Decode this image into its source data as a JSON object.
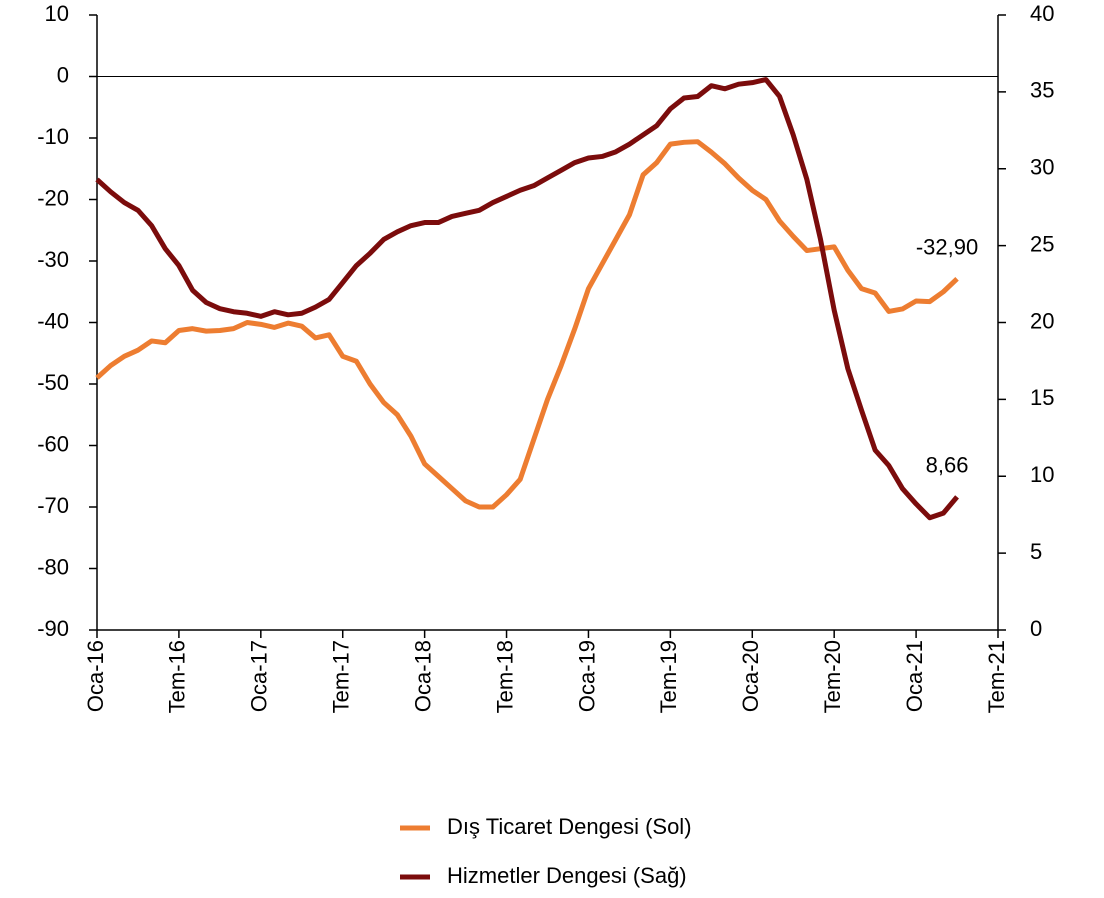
{
  "chart_data": {
    "type": "line",
    "categories": [
      "Oca-16",
      null,
      null,
      null,
      null,
      null,
      "Tem-16",
      null,
      null,
      null,
      null,
      null,
      "Oca-17",
      null,
      null,
      null,
      null,
      null,
      "Tem-17",
      null,
      null,
      null,
      null,
      null,
      "Oca-18",
      null,
      null,
      null,
      null,
      null,
      "Tem-18",
      null,
      null,
      null,
      null,
      null,
      "Oca-19",
      null,
      null,
      null,
      null,
      null,
      "Tem-19",
      null,
      null,
      null,
      null,
      null,
      "Oca-20",
      null,
      null,
      null,
      null,
      null,
      "Tem-20",
      null,
      null,
      null,
      null,
      null,
      "Oca-21",
      null,
      null,
      null,
      null,
      null,
      "Tem-21"
    ],
    "series": [
      {
        "name": "Dış Ticaret Dengesi (Sol)",
        "color": "#ed7d31",
        "axis": "y",
        "values": [
          -49,
          -47,
          -45.5,
          -44.5,
          -43,
          -43.3,
          -41.3,
          -41,
          -41.4,
          -41.3,
          -41,
          -40,
          -40.3,
          -40.8,
          -40.1,
          -40.6,
          -42.5,
          -42,
          -45.5,
          -46.3,
          -50,
          -53,
          -55,
          -58.5,
          -63,
          -65,
          -67,
          -69,
          -70,
          -70,
          -68,
          -65.5,
          -59,
          -52.5,
          -47,
          -41,
          -34.5,
          -30.5,
          -26.5,
          -22.5,
          -16,
          -14,
          -11,
          -10.7,
          -10.6,
          -12.3,
          -14.2,
          -16.5,
          -18.5,
          -20,
          -23.5,
          -26,
          -28.3,
          -28,
          -27.7,
          -31.5,
          -34.5,
          -35.2,
          -38.2,
          -37.8,
          -36.5,
          -36.6,
          -35,
          -32.9,
          null,
          null,
          null
        ],
        "value_labels": [
          null,
          null,
          null,
          null,
          null,
          null,
          null,
          null,
          null,
          null,
          null,
          null,
          null,
          null,
          null,
          null,
          null,
          null,
          null,
          null,
          null,
          null,
          null,
          null,
          null,
          null,
          null,
          null,
          null,
          null,
          null,
          null,
          null,
          null,
          null,
          null,
          null,
          null,
          null,
          null,
          null,
          null,
          null,
          null,
          null,
          null,
          null,
          null,
          null,
          null,
          null,
          null,
          null,
          null,
          null,
          null,
          null,
          null,
          null,
          null,
          null,
          null,
          null,
          "-32,90",
          null,
          null,
          null
        ]
      },
      {
        "name": "Hizmetler Dengesi (Sağ)",
        "color": "#7b0c0c",
        "axis": "y2",
        "values": [
          29.3,
          28.5,
          27.8,
          27.3,
          26.3,
          24.8,
          23.7,
          22.1,
          21.3,
          20.9,
          20.7,
          20.6,
          20.4,
          20.7,
          20.5,
          20.6,
          21,
          21.5,
          22.6,
          23.7,
          24.5,
          25.4,
          25.9,
          26.3,
          26.5,
          26.5,
          26.9,
          27.1,
          27.3,
          27.8,
          28.2,
          28.6,
          28.9,
          29.4,
          29.9,
          30.4,
          30.7,
          30.8,
          31.1,
          31.6,
          32.2,
          32.8,
          33.9,
          34.6,
          34.7,
          35.4,
          35.2,
          35.5,
          35.6,
          35.8,
          34.7,
          32.2,
          29.3,
          25.4,
          20.8,
          17,
          14.3,
          11.7,
          10.7,
          9.2,
          8.2,
          7.3,
          7.6,
          8.66,
          null,
          null,
          null
        ],
        "value_labels": [
          null,
          null,
          null,
          null,
          null,
          null,
          null,
          null,
          null,
          null,
          null,
          null,
          null,
          null,
          null,
          null,
          null,
          null,
          null,
          null,
          null,
          null,
          null,
          null,
          null,
          null,
          null,
          null,
          null,
          null,
          null,
          null,
          null,
          null,
          null,
          null,
          null,
          null,
          null,
          null,
          null,
          null,
          null,
          null,
          null,
          null,
          null,
          null,
          null,
          null,
          null,
          null,
          null,
          null,
          null,
          null,
          null,
          null,
          null,
          null,
          null,
          null,
          null,
          "8,66",
          null,
          null,
          null
        ]
      }
    ],
    "ylim": [
      -90,
      10
    ],
    "yticks": [
      -90,
      -80,
      -70,
      -60,
      -50,
      -40,
      -30,
      -20,
      -10,
      0,
      10
    ],
    "y2lim": [
      0,
      40
    ],
    "y2ticks": [
      0,
      5,
      10,
      15,
      20,
      25,
      30,
      35,
      40
    ],
    "zero_line": true,
    "legend": "bottom"
  }
}
